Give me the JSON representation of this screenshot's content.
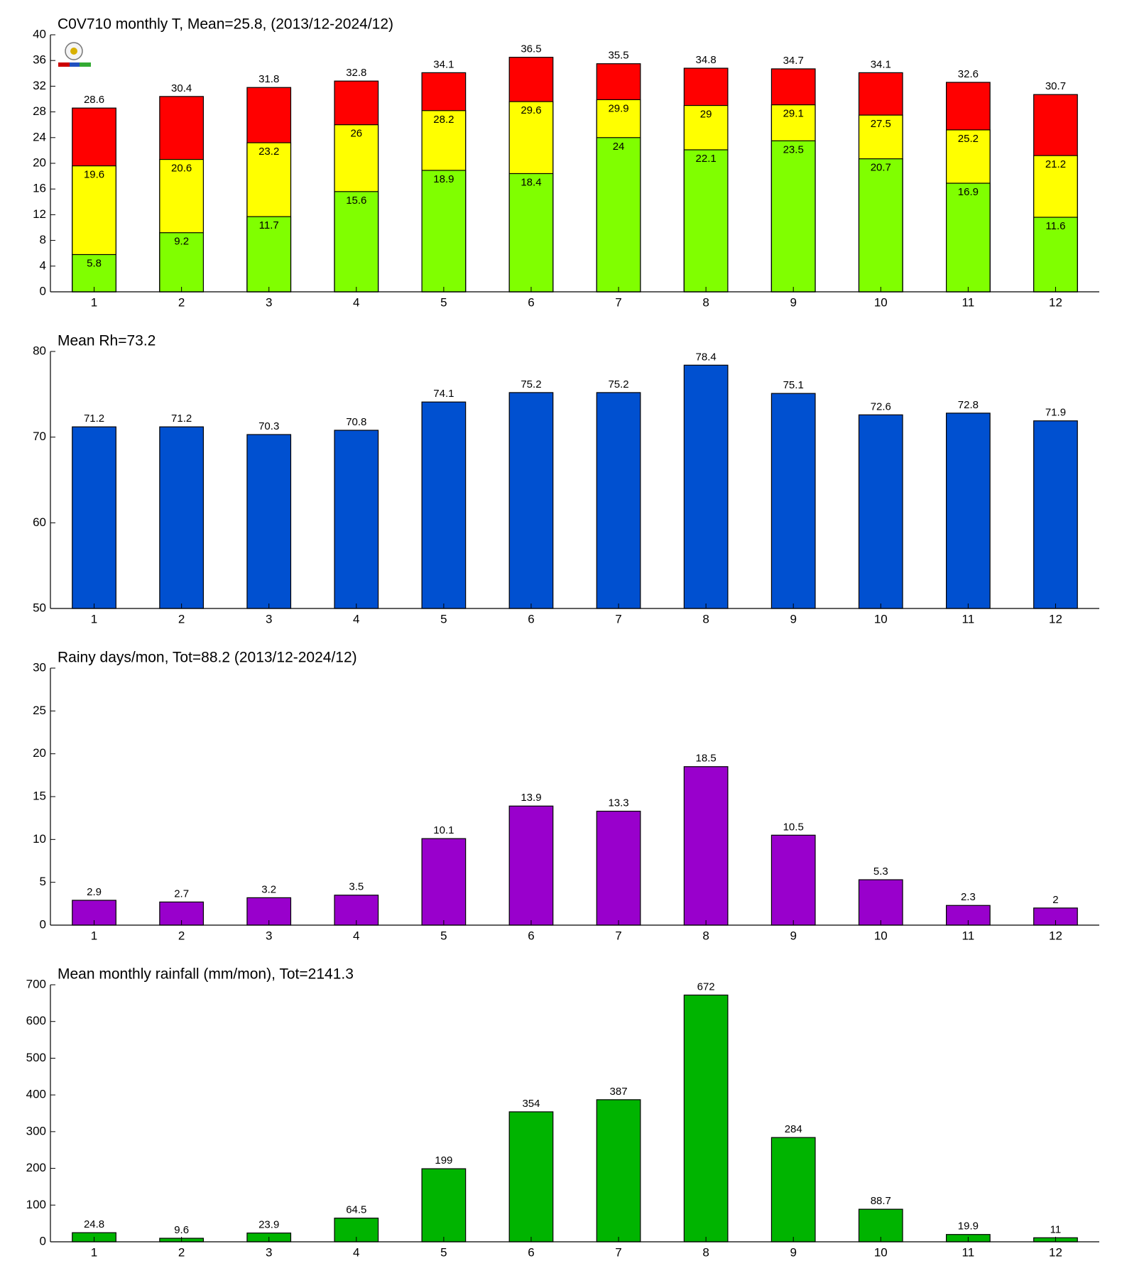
{
  "chart_data": [
    {
      "type": "bar",
      "title": "C0V710 monthly T, Mean=25.8, (2013/12-2024/12)",
      "categories": [
        1,
        2,
        3,
        4,
        5,
        6,
        7,
        8,
        9,
        10,
        11,
        12
      ],
      "series": [
        {
          "color": "#ff0000",
          "values": [
            28.6,
            30.4,
            31.8,
            32.8,
            34.1,
            36.5,
            35.5,
            34.8,
            34.7,
            34.1,
            32.6,
            30.7
          ]
        },
        {
          "color": "#ffff00",
          "values": [
            19.6,
            20.6,
            23.2,
            26,
            28.2,
            29.6,
            29.9,
            29,
            29.1,
            27.5,
            25.2,
            21.2
          ]
        },
        {
          "color": "#80ff00",
          "values": [
            5.8,
            9.2,
            11.7,
            15.6,
            18.9,
            18.4,
            24,
            22.1,
            23.5,
            20.7,
            16.9,
            11.6
          ]
        }
      ],
      "ylim": [
        0,
        40
      ],
      "yticks": [
        0,
        4,
        8,
        12,
        16,
        20,
        24,
        28,
        32,
        36,
        40
      ]
    },
    {
      "type": "bar",
      "title": "Mean Rh=73.2",
      "categories": [
        1,
        2,
        3,
        4,
        5,
        6,
        7,
        8,
        9,
        10,
        11,
        12
      ],
      "series": [
        {
          "color": "#0050d0",
          "values": [
            71.2,
            71.2,
            70.3,
            70.8,
            74.1,
            75.2,
            75.2,
            78.4,
            75.1,
            72.6,
            72.8,
            71.9
          ]
        }
      ],
      "ylim": [
        50,
        80
      ],
      "yticks": [
        50,
        60,
        70,
        80
      ]
    },
    {
      "type": "bar",
      "title": "Rainy days/mon, Tot=88.2 (2013/12-2024/12)",
      "categories": [
        1,
        2,
        3,
        4,
        5,
        6,
        7,
        8,
        9,
        10,
        11,
        12
      ],
      "series": [
        {
          "color": "#9900cc",
          "values": [
            2.9,
            2.7,
            3.2,
            3.5,
            10.1,
            13.9,
            13.3,
            18.5,
            10.5,
            5.3,
            2.3,
            2
          ]
        }
      ],
      "ylim": [
        0,
        30
      ],
      "yticks": [
        0,
        5,
        10,
        15,
        20,
        25,
        30
      ]
    },
    {
      "type": "bar",
      "title": "Mean monthly rainfall (mm/mon), Tot=2141.3",
      "categories": [
        1,
        2,
        3,
        4,
        5,
        6,
        7,
        8,
        9,
        10,
        11,
        12
      ],
      "series": [
        {
          "color": "#00b400",
          "values": [
            24.8,
            9.6,
            23.9,
            64.5,
            199,
            354,
            387,
            672,
            284,
            88.7,
            19.9,
            11
          ]
        }
      ],
      "ylim": [
        0,
        700
      ],
      "yticks": [
        0,
        100,
        200,
        300,
        400,
        500,
        600,
        700
      ]
    }
  ]
}
